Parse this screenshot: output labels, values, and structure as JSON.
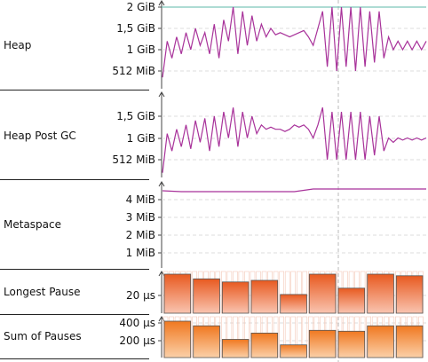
{
  "lanes": [
    {
      "id": "heap",
      "label": "Heap",
      "ticks": [
        "2 GiB",
        "1,5 GiB",
        "1 GiB",
        "512 MiB"
      ]
    },
    {
      "id": "heap-post-gc",
      "label": "Heap Post GC",
      "ticks": [
        "1,5 GiB",
        "1 GiB",
        "512 MiB"
      ]
    },
    {
      "id": "metaspace",
      "label": "Metaspace",
      "ticks": [
        "4 MiB",
        "3 MiB",
        "2 MiB",
        "1 MiB"
      ]
    },
    {
      "id": "longest-pause",
      "label": "Longest Pause",
      "ticks": [
        "20 µs"
      ]
    },
    {
      "id": "sum-of-pauses",
      "label": "Sum of Pauses",
      "ticks": [
        "400 µs",
        "200 µs"
      ]
    }
  ],
  "colors": {
    "line": "#a8329a",
    "limit_line": "#5cb8a8",
    "bar_top": "#e85a20",
    "bar_bottom": "#f9c4b0",
    "bar2_top": "#f07820",
    "bar2_bottom": "#fbd0a8",
    "grid": "#dddddd"
  },
  "chart_data": [
    {
      "type": "line",
      "lane": "heap",
      "ylim": [
        0,
        2
      ],
      "values": [
        0.35,
        1.2,
        0.8,
        1.3,
        0.9,
        1.4,
        1.0,
        1.5,
        1.1,
        1.4,
        0.9,
        1.6,
        0.8,
        1.7,
        1.2,
        2.0,
        0.9,
        1.9,
        1.1,
        1.8,
        1.2,
        1.6,
        1.3,
        1.5,
        1.35,
        1.4,
        1.35,
        1.3,
        1.35,
        1.4,
        1.45,
        1.3,
        1.1,
        1.5,
        1.9,
        0.6,
        2.0,
        0.5,
        2.0,
        0.6,
        2.0,
        0.5,
        2.0,
        0.6,
        1.9,
        0.7,
        1.9,
        0.8,
        1.3,
        1.0,
        1.2,
        1.0,
        1.2,
        1.0,
        1.2,
        1.0,
        1.2
      ]
    },
    {
      "type": "line",
      "lane": "heap-post-gc",
      "ylim": [
        0,
        1.75
      ],
      "values": [
        0.2,
        1.1,
        0.7,
        1.2,
        0.8,
        1.3,
        0.75,
        1.4,
        0.9,
        1.45,
        0.7,
        1.5,
        0.8,
        1.6,
        1.0,
        1.7,
        0.8,
        1.6,
        1.0,
        1.5,
        1.1,
        1.3,
        1.2,
        1.25,
        1.2,
        1.2,
        1.15,
        1.2,
        1.3,
        1.25,
        1.3,
        1.2,
        1.0,
        1.3,
        1.7,
        0.5,
        1.6,
        0.5,
        1.6,
        0.5,
        1.6,
        0.5,
        1.6,
        0.5,
        1.5,
        0.6,
        1.5,
        0.7,
        1.0,
        0.9,
        1.0,
        0.95,
        1.0,
        0.95,
        1.0,
        0.95,
        1.0
      ]
    },
    {
      "type": "line",
      "lane": "metaspace",
      "ylim": [
        0,
        4.5
      ],
      "values": [
        4.5,
        4.45,
        4.45,
        4.45,
        4.45,
        4.45,
        4.45,
        4.45,
        4.6,
        4.6,
        4.6,
        4.6,
        4.6,
        4.6,
        4.6
      ]
    },
    {
      "type": "bar",
      "lane": "longest-pause",
      "ylim": [
        0,
        25
      ],
      "values": [
        25,
        22,
        20,
        21,
        12,
        25,
        16,
        25,
        24
      ]
    },
    {
      "type": "bar",
      "lane": "sum-of-pauses",
      "ylim": [
        0,
        420
      ],
      "values": [
        400,
        350,
        200,
        270,
        140,
        300,
        290,
        350,
        350
      ]
    }
  ]
}
